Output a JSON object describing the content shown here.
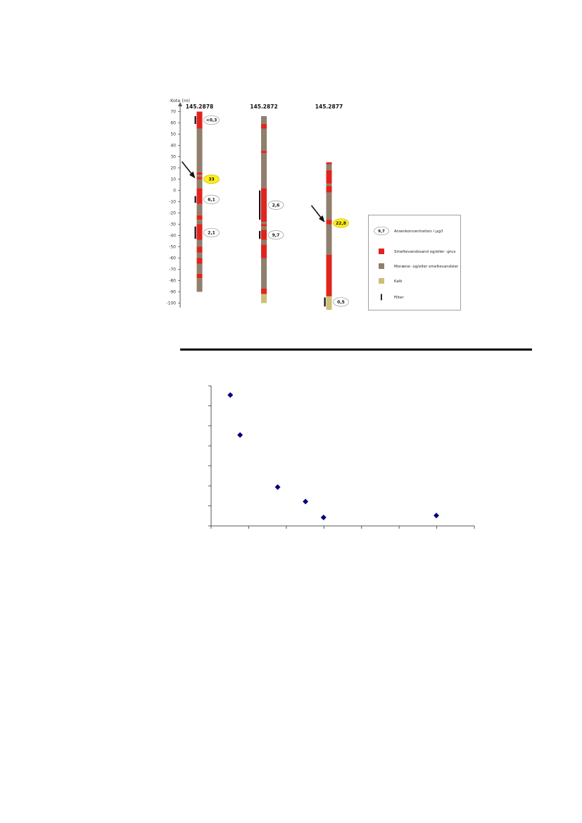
{
  "chart_data": [
    {
      "type": "borehole-log",
      "ylabel": "Kote (m)",
      "ylim": [
        -100,
        70
      ],
      "y_ticks": [
        70,
        60,
        50,
        40,
        30,
        20,
        10,
        0,
        -10,
        -20,
        -30,
        -40,
        -50,
        -60,
        -70,
        -80,
        -90,
        -100
      ],
      "boreholes": [
        {
          "id": "145.2878",
          "top": 70,
          "bottom": -90,
          "layers": [
            {
              "from": 70,
              "to": 55,
              "material": "sand"
            },
            {
              "from": 55,
              "to": 16,
              "material": "clay"
            },
            {
              "from": 16,
              "to": 14,
              "material": "sand"
            },
            {
              "from": 14,
              "to": 12,
              "material": "clay"
            },
            {
              "from": 12,
              "to": 10,
              "material": "sand"
            },
            {
              "from": 10,
              "to": 2,
              "material": "clay"
            },
            {
              "from": 2,
              "to": -12,
              "material": "sand"
            },
            {
              "from": -12,
              "to": -22,
              "material": "clay"
            },
            {
              "from": -22,
              "to": -26,
              "material": "sand"
            },
            {
              "from": -26,
              "to": -30,
              "material": "clay"
            },
            {
              "from": -30,
              "to": -44,
              "material": "sand"
            },
            {
              "from": -44,
              "to": -50,
              "material": "clay"
            },
            {
              "from": -50,
              "to": -55,
              "material": "sand"
            },
            {
              "from": -55,
              "to": -60,
              "material": "clay"
            },
            {
              "from": -60,
              "to": -65,
              "material": "sand"
            },
            {
              "from": -65,
              "to": -74,
              "material": "clay"
            },
            {
              "from": -74,
              "to": -78,
              "material": "sand"
            },
            {
              "from": -78,
              "to": -90,
              "material": "clay"
            }
          ],
          "filters": [
            {
              "from": 66,
              "to": 59,
              "label": "<0,3",
              "highlight": false
            },
            {
              "from": -5,
              "to": -11,
              "label": "6,1",
              "highlight": false
            },
            {
              "from": -32,
              "to": -43,
              "label": "2,1",
              "highlight": false
            }
          ],
          "callouts": [
            {
              "at": 10,
              "label": "33",
              "highlight": true,
              "arrow": true
            }
          ]
        },
        {
          "id": "145.2872",
          "top": 66,
          "bottom": -100,
          "layers": [
            {
              "from": 66,
              "to": 59,
              "material": "clay"
            },
            {
              "from": 59,
              "to": 55,
              "material": "sand"
            },
            {
              "from": 55,
              "to": 35,
              "material": "clay"
            },
            {
              "from": 35,
              "to": 33,
              "material": "sand"
            },
            {
              "from": 33,
              "to": 2,
              "material": "clay"
            },
            {
              "from": 2,
              "to": -28,
              "material": "sand"
            },
            {
              "from": -28,
              "to": -30,
              "material": "clay"
            },
            {
              "from": -30,
              "to": -32,
              "material": "sand"
            },
            {
              "from": -32,
              "to": -35,
              "material": "clay"
            },
            {
              "from": -35,
              "to": -44,
              "material": "sand"
            },
            {
              "from": -44,
              "to": -48,
              "material": "clay"
            },
            {
              "from": -48,
              "to": -60,
              "material": "sand"
            },
            {
              "from": -60,
              "to": -87,
              "material": "clay"
            },
            {
              "from": -87,
              "to": -92,
              "material": "sand"
            },
            {
              "from": -92,
              "to": -100,
              "material": "kalk"
            }
          ],
          "filters": [
            {
              "from": 0,
              "to": -26,
              "label": "2,6",
              "highlight": false
            },
            {
              "from": -36,
              "to": -43,
              "label": "9,7",
              "highlight": false
            }
          ],
          "callouts": []
        },
        {
          "id": "145.2877",
          "top": 25,
          "bottom": -106,
          "layers": [
            {
              "from": 25,
              "to": 23,
              "material": "sand"
            },
            {
              "from": 23,
              "to": 18,
              "material": "clay"
            },
            {
              "from": 18,
              "to": 6,
              "material": "sand"
            },
            {
              "from": 6,
              "to": 4,
              "material": "clay"
            },
            {
              "from": 4,
              "to": -2,
              "material": "sand"
            },
            {
              "from": -2,
              "to": -26,
              "material": "clay"
            },
            {
              "from": -26,
              "to": -30,
              "material": "sand"
            },
            {
              "from": -30,
              "to": -57,
              "material": "clay"
            },
            {
              "from": -57,
              "to": -94,
              "material": "sand"
            },
            {
              "from": -94,
              "to": -106,
              "material": "kalk"
            }
          ],
          "filters": [
            {
              "from": -95,
              "to": -103,
              "label": "0,5",
              "highlight": false
            }
          ],
          "callouts": [
            {
              "at": -29,
              "label": "22,8",
              "highlight": true,
              "arrow": true
            }
          ]
        }
      ],
      "legend": {
        "placement": "right",
        "items": [
          {
            "symbol": "label",
            "sample": "9,7",
            "text": "Arsenkoncentration i µg/l"
          },
          {
            "symbol": "swatch",
            "material": "sand",
            "text": "Smeltevandssand og/eller -grus"
          },
          {
            "symbol": "swatch",
            "material": "clay",
            "text": "Moræne- og/eller smeltevandsler"
          },
          {
            "symbol": "swatch",
            "material": "kalk",
            "text": "Kalk"
          },
          {
            "symbol": "filter",
            "text": "Filter"
          }
        ]
      },
      "colors": {
        "sand": "#e0241d",
        "clay": "#8f7f6c",
        "kalk": "#cdbf7a",
        "highlight": "#ffee1a",
        "filter": "#111111"
      }
    },
    {
      "type": "scatter",
      "title": "",
      "xlabel": "",
      "ylabel": "",
      "xlim": [
        0,
        70
      ],
      "ylim": [
        0,
        35
      ],
      "x_ticks": [
        0,
        10,
        20,
        30,
        40,
        50,
        60,
        70
      ],
      "y_ticks": [
        0,
        5,
        10,
        15,
        20,
        25,
        30,
        35
      ],
      "tick_labels_visible": false,
      "grid": false,
      "marker": "diamond",
      "marker_color": "#000080",
      "x": [
        5.1,
        7.7,
        17.7,
        25.1,
        29.9,
        59.9
      ],
      "y": [
        32.7,
        22.7,
        9.7,
        6.1,
        2.1,
        2.6
      ]
    }
  ]
}
